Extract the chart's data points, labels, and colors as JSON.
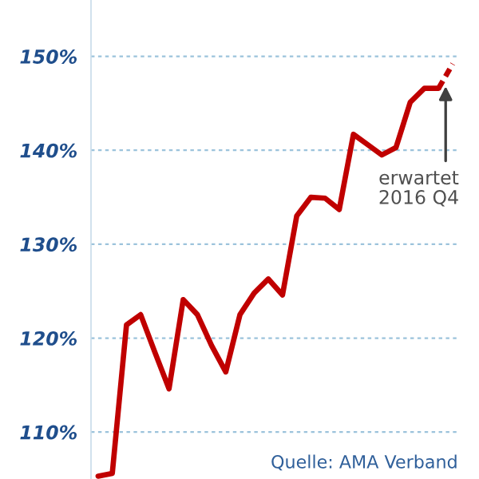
{
  "chart_data": {
    "type": "line",
    "categories": [
      null,
      null,
      null,
      null,
      null,
      null,
      null,
      null,
      null,
      null,
      null,
      null,
      null,
      null,
      null,
      null,
      null,
      null,
      null,
      null,
      null,
      null,
      null,
      null,
      null,
      null
    ],
    "series": [
      {
        "color": "#c00000",
        "line_style": "solid",
        "values": [
          105.3,
          105.6,
          121.4,
          122.5,
          118.5,
          114.6,
          124.1,
          122.5,
          119.2,
          116.4,
          122.5,
          124.8,
          126.3,
          124.6,
          133.0,
          135.0,
          134.9,
          133.7,
          141.7,
          140.6,
          139.5,
          140.3,
          145.1,
          146.6,
          146.6,
          null
        ]
      },
      {
        "color": "#c00000",
        "line_style": "dashed",
        "values": [
          null,
          null,
          null,
          null,
          null,
          null,
          null,
          null,
          null,
          null,
          null,
          null,
          null,
          null,
          null,
          null,
          null,
          null,
          null,
          null,
          null,
          null,
          null,
          null,
          146.6,
          149.2
        ]
      }
    ],
    "ylim": [
      105,
      156
    ],
    "yticks": [
      {
        "value": 110,
        "label": "110%"
      },
      {
        "value": 120,
        "label": "120%"
      },
      {
        "value": 130,
        "label": "130%"
      },
      {
        "value": 140,
        "label": "140%"
      },
      {
        "value": 150,
        "label": "150%"
      }
    ],
    "grid": "y",
    "marker": "none",
    "annotations": [
      "erwartet\n2016 Q4",
      "Quelle: AMA Verband"
    ]
  }
}
